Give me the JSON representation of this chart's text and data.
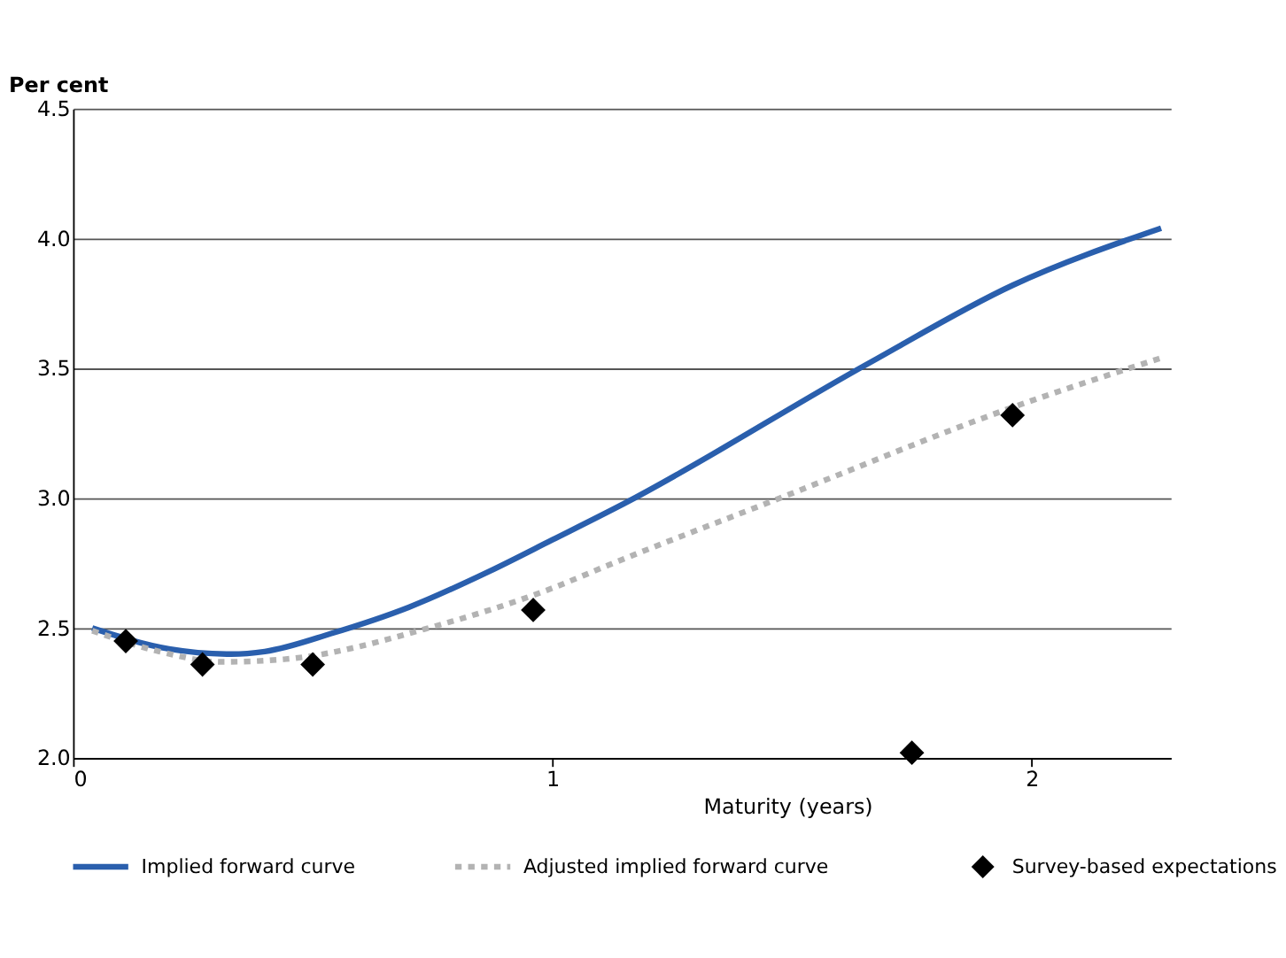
{
  "chart_data": {
    "type": "line",
    "ylabel": "Per cent",
    "xlabel": "Maturity (years)",
    "xlim": [
      0,
      2.29
    ],
    "xticks": [
      0,
      1,
      2
    ],
    "ylim": [
      2.0,
      4.5
    ],
    "yticks": [
      {
        "value": 2.0,
        "label": "2.0"
      },
      {
        "value": 2.5,
        "label": "2.5"
      },
      {
        "value": 3.0,
        "label": "3.0"
      },
      {
        "value": 3.5,
        "label": "3.5"
      },
      {
        "value": 4.0,
        "label": "4.0"
      },
      {
        "value": 4.5,
        "label": "4.5"
      }
    ],
    "grid": "y",
    "legend": "bottom",
    "series": [
      {
        "name": "Implied forward curve",
        "line_style": "solid",
        "color": "#2a5fad",
        "x": [
          0.04,
          0.2,
          0.33,
          0.4,
          0.54,
          0.7,
          0.87,
          1.0,
          1.15,
          1.66,
          1.96,
          2.27
        ],
        "values": [
          2.5,
          2.42,
          2.4,
          2.41,
          2.48,
          2.58,
          2.72,
          2.84,
          2.98,
          3.52,
          3.82,
          4.04
        ]
      },
      {
        "name": "Adjusted implied forward curve",
        "line_style": "dotted",
        "color": "#b3b3b3",
        "x": [
          0.04,
          0.18,
          0.31,
          0.44,
          0.76,
          0.98,
          1.14,
          1.46,
          1.96,
          2.27
        ],
        "values": [
          2.49,
          2.41,
          2.37,
          2.38,
          2.51,
          2.64,
          2.76,
          2.99,
          3.35,
          3.54
        ]
      },
      {
        "name": "Survey-based expectations",
        "type": "scatter",
        "marker": "diamond",
        "color": "#000000",
        "x": [
          0.11,
          0.27,
          0.5,
          0.96,
          1.75,
          1.96
        ],
        "values": [
          2.45,
          2.36,
          2.36,
          2.57,
          2.02,
          3.32
        ]
      }
    ]
  }
}
